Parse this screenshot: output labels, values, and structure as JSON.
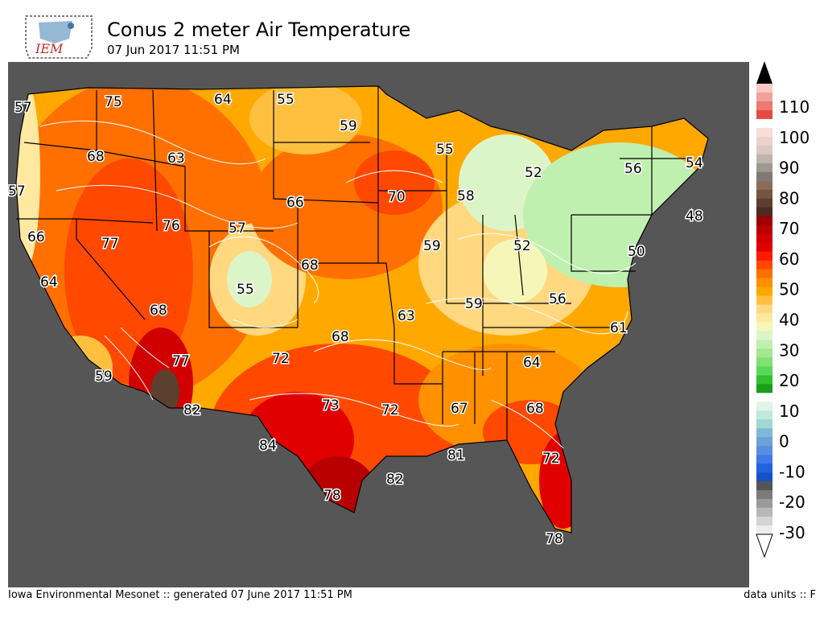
{
  "logo": {
    "text": "IEM"
  },
  "header": {
    "title": "Conus 2 meter Air Temperature",
    "subtitle": "07 Jun 2017 11:51 PM"
  },
  "footer": {
    "left": "Iowa Environmental Mesonet :: generated 07 June 2017 11:51 PM",
    "right": "data units :: F"
  },
  "colors": {
    "ocean": "#565656",
    "land_outside": "#565656",
    "border": "#000000",
    "contour": "#ffffff"
  },
  "colorbar": {
    "tick_labels": [
      "110",
      "100",
      "90",
      "80",
      "70",
      "60",
      "50",
      "40",
      "30",
      "20",
      "10",
      "0",
      "-10",
      "-20",
      "-30"
    ],
    "colors_top_to_bottom": [
      "#f9c9c4",
      "#f3a29b",
      "#ec7a72",
      "#e24b44",
      "#ffffff",
      "#f6dedb",
      "#efd0cb",
      "#d9c8c3",
      "#bfb5ae",
      "#9d9a93",
      "#7f7b73",
      "#8c6d5a",
      "#76543f",
      "#5c3f2f",
      "#4d2a22",
      "#a00000",
      "#b80000",
      "#d00000",
      "#e00000",
      "#ff1a00",
      "#ff4800",
      "#ff7000",
      "#ff9000",
      "#ffa800",
      "#ffc040",
      "#ffd880",
      "#ffe8a0",
      "#f6f6b8",
      "#dcf5c8",
      "#c0f0b0",
      "#a4e890",
      "#80e070",
      "#5ad85a",
      "#30c030",
      "#1a9f1a",
      "#ffffff",
      "#e0f4e8",
      "#c0e8dc",
      "#9fd8d0",
      "#7fb8d8",
      "#6fa0d8",
      "#5a8ee0",
      "#3f7ae6",
      "#1f64de",
      "#1a50c8",
      "#555555",
      "#7b7b7b",
      "#9a9a9a",
      "#b8b8b8",
      "#d4d4d4",
      "#ececec"
    ]
  },
  "map": {
    "type": "filled-contour temperature map",
    "region": "Contiguous United States",
    "units": "F",
    "station_labels": [
      {
        "text": "57"
      },
      {
        "text": "75"
      },
      {
        "text": "64"
      },
      {
        "text": "55"
      },
      {
        "text": "59"
      },
      {
        "text": "68"
      },
      {
        "text": "63"
      },
      {
        "text": "55"
      },
      {
        "text": "52"
      },
      {
        "text": "56"
      },
      {
        "text": "54"
      },
      {
        "text": "57"
      },
      {
        "text": "66"
      },
      {
        "text": "70"
      },
      {
        "text": "58"
      },
      {
        "text": "48"
      },
      {
        "text": "66"
      },
      {
        "text": "76"
      },
      {
        "text": "57"
      },
      {
        "text": "77"
      },
      {
        "text": "59"
      },
      {
        "text": "52"
      },
      {
        "text": "50"
      },
      {
        "text": "64"
      },
      {
        "text": "55"
      },
      {
        "text": "68"
      },
      {
        "text": "68"
      },
      {
        "text": "63"
      },
      {
        "text": "59"
      },
      {
        "text": "56"
      },
      {
        "text": "61"
      },
      {
        "text": "68"
      },
      {
        "text": "77"
      },
      {
        "text": "72"
      },
      {
        "text": "64"
      },
      {
        "text": "59"
      },
      {
        "text": "82"
      },
      {
        "text": "73"
      },
      {
        "text": "72"
      },
      {
        "text": "67"
      },
      {
        "text": "68"
      },
      {
        "text": "84"
      },
      {
        "text": "81"
      },
      {
        "text": "72"
      },
      {
        "text": "82"
      },
      {
        "text": "78"
      },
      {
        "text": "78"
      }
    ]
  }
}
